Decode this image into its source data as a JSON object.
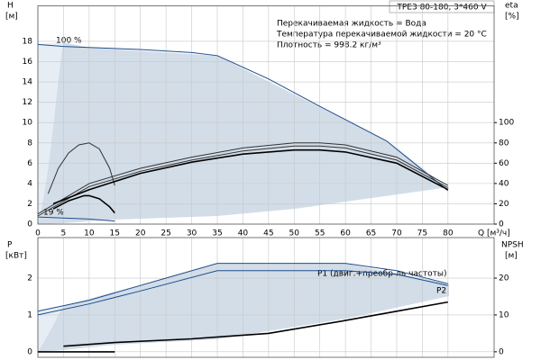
{
  "chart_data": [
    {
      "type": "line",
      "title": "TPE3 80-180, 3*460 V",
      "annotations": [
        "Перекачиваемая жидкость = Вода",
        "Температура перекачиваемой жидкости = 20 °C",
        "Плотность = 998.2 кг/м³",
        "100 %",
        "19 %"
      ],
      "y_label": "H",
      "y_unit": "[м]",
      "y2_label": "eta",
      "y2_unit": "[%]",
      "x_label": "Q [м³/ч]",
      "xlim": [
        0,
        89
      ],
      "xticks": [
        0,
        5,
        10,
        15,
        20,
        25,
        30,
        35,
        40,
        45,
        50,
        55,
        60,
        65,
        70,
        75,
        80
      ],
      "ylim": [
        0,
        21.5
      ],
      "yticks": [
        0,
        2,
        4,
        6,
        8,
        10,
        12,
        14,
        16,
        18
      ],
      "y2lim": [
        0,
        215
      ],
      "y2ticks": [
        0,
        20,
        40,
        60,
        80,
        100
      ],
      "grid": true,
      "series": [
        {
          "color": "#1f4e8c",
          "x": [
            0,
            5,
            10,
            20,
            30,
            35,
            45,
            55,
            68,
            80
          ],
          "values": [
            17.7,
            17.5,
            17.4,
            17.2,
            16.9,
            16.6,
            14.3,
            11.6,
            8.2,
            3.3
          ]
        },
        {
          "color": "#1f4e8c",
          "x": [
            0,
            5,
            10,
            15
          ],
          "values": [
            0.7,
            0.6,
            0.5,
            0.3
          ]
        },
        {
          "color": "#333333",
          "axis": "y2",
          "x": [
            2,
            4,
            6,
            8,
            10,
            12,
            14,
            15
          ],
          "values": [
            30,
            55,
            70,
            78,
            80,
            74,
            55,
            38
          ]
        },
        {
          "color": "#000000",
          "axis": "y2",
          "x": [
            3,
            6,
            9,
            10,
            12,
            14,
            15
          ],
          "values": [
            15,
            23,
            28,
            28,
            25,
            17,
            11
          ]
        },
        {
          "color": "#333333",
          "axis": "y2",
          "x": [
            0,
            10,
            20,
            30,
            40,
            50,
            55,
            60,
            70,
            80
          ],
          "values": [
            10,
            40,
            55,
            66,
            75,
            80,
            80,
            78,
            66,
            38
          ]
        },
        {
          "color": "#333333",
          "axis": "y2",
          "x": [
            0,
            10,
            20,
            30,
            40,
            50,
            55,
            60,
            70,
            80
          ],
          "values": [
            8,
            37,
            52,
            63,
            72,
            77,
            77,
            75,
            63,
            36
          ]
        },
        {
          "color": "#000000",
          "axis": "y2",
          "x": [
            3,
            10,
            20,
            30,
            40,
            50,
            55,
            60,
            70,
            80
          ],
          "values": [
            20,
            34,
            50,
            61,
            69,
            73,
            73,
            71,
            60,
            34
          ]
        }
      ]
    },
    {
      "type": "line",
      "y_label": "P",
      "y_unit": "[кВт]",
      "y2_label": "NPSH",
      "y2_unit": "[м]",
      "xlim": [
        0,
        89
      ],
      "xticks": [
        0,
        5,
        10,
        15,
        20,
        25,
        30,
        35,
        40,
        45,
        50,
        55,
        60,
        65,
        70,
        75,
        80
      ],
      "ylim": [
        -0.15,
        3.1
      ],
      "yticks": [
        0,
        1,
        2
      ],
      "y2lim": [
        -1.5,
        31
      ],
      "y2ticks": [
        0,
        10,
        20
      ],
      "grid": true,
      "series": [
        {
          "name": "P1 (двиг.+преобр-ль частоты)",
          "color": "#1f4e8c",
          "x": [
            0,
            10,
            20,
            25,
            35,
            60,
            70,
            80
          ],
          "values": [
            1.1,
            1.4,
            1.8,
            2.0,
            2.4,
            2.4,
            2.2,
            1.85
          ]
        },
        {
          "color": "#1f4e8c",
          "x": [
            0,
            10,
            20,
            35,
            60,
            70,
            80
          ],
          "values": [
            1.0,
            1.3,
            1.65,
            2.2,
            2.2,
            2.1,
            1.8
          ]
        },
        {
          "name": "P2",
          "color": "#000000",
          "x": [
            5,
            15,
            30,
            45,
            60,
            70,
            80
          ],
          "values": [
            0.15,
            0.25,
            0.35,
            0.5,
            0.85,
            1.1,
            1.35
          ]
        },
        {
          "color": "#000000",
          "axis": "y2",
          "x": [
            0,
            15
          ],
          "values": [
            0,
            0
          ]
        }
      ]
    }
  ]
}
